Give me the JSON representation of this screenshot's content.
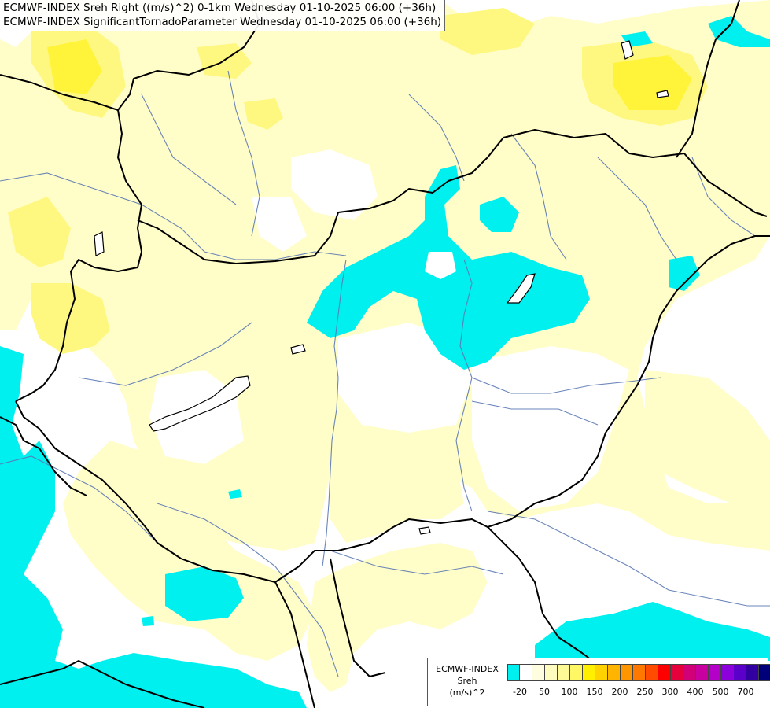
{
  "title": {
    "line1": "ECMWF-INDEX Sreh Right ((m/s)^2) 0-1km Wednesday 01-10-2025 06:00 (+36h)",
    "line2": "ECMWF-INDEX SignificantTornadoParameter Wednesday 01-10-2025 06:00 (+36h)"
  },
  "legend": {
    "label_line1": "ECMWF-INDEX",
    "label_line2": "Sreh",
    "label_line3": "(m/s)^2",
    "colors": [
      "#00f0f0",
      "#ffffff",
      "#fffde0",
      "#fffcc0",
      "#fffa96",
      "#fff864",
      "#fff000",
      "#ffd200",
      "#ffb400",
      "#ff9600",
      "#ff7800",
      "#ff4b00",
      "#ff0000",
      "#e6003c",
      "#d20078",
      "#c800a0",
      "#b400c8",
      "#8c00dc",
      "#5a00c8",
      "#3200a0",
      "#000078"
    ],
    "ticks": [
      "-20",
      "50",
      "100",
      "150",
      "200",
      "250",
      "300",
      "400",
      "500",
      "700"
    ]
  },
  "map": {
    "icons": [
      "country-border",
      "river-network",
      "lake-balaton"
    ],
    "colors": {
      "cyan": "#00f0f0",
      "light_yellow": "#fffdc8",
      "yellow": "#fff880",
      "bright_yellow": "#fff000",
      "white": "#ffffff",
      "border": "#000000",
      "river": "#5a78b4"
    }
  }
}
